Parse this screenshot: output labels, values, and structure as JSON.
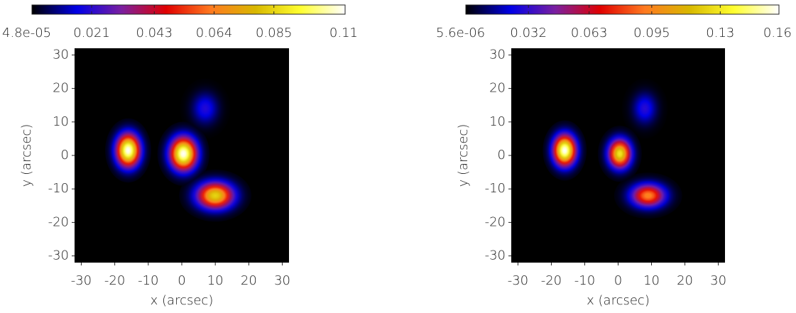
{
  "chart_data": [
    {
      "type": "heatmap",
      "xlabel": "x (arcsec)",
      "ylabel": "y (arcsec)",
      "xlim": [
        -32,
        32
      ],
      "ylim": [
        -32,
        32
      ],
      "xticks": [
        -30,
        -20,
        -10,
        0,
        10,
        20,
        30
      ],
      "yticks": [
        -30,
        -20,
        -10,
        0,
        10,
        20,
        30
      ],
      "clim": [
        4.8e-05,
        0.11
      ],
      "cticks": [
        {
          "value": 4.8e-05,
          "label": "4.8e-05"
        },
        0.021,
        0.043,
        0.064,
        0.085,
        0.11
      ],
      "colormap": [
        "#000000",
        "#0000e6",
        "#7a1fa0",
        "#e00000",
        "#ff7a20",
        "#d8b800",
        "#ffff30",
        "#ffffff"
      ],
      "sources": [
        {
          "x": -16,
          "y": 1.5,
          "value": 0.11,
          "sx": 2.3,
          "sy": 3.2
        },
        {
          "x": 0.5,
          "y": 0.5,
          "value": 0.11,
          "sx": 2.6,
          "sy": 3.2
        },
        {
          "x": 10,
          "y": -12,
          "value": 0.085,
          "sx": 3.6,
          "sy": 2.6
        },
        {
          "x": 7,
          "y": 14,
          "value": 0.02,
          "sx": 2.5,
          "sy": 3
        }
      ]
    },
    {
      "type": "heatmap",
      "xlabel": "x (arcsec)",
      "ylabel": "y (arcsec)",
      "xlim": [
        -32,
        32
      ],
      "ylim": [
        -32,
        32
      ],
      "xticks": [
        -30,
        -20,
        -10,
        0,
        10,
        20,
        30
      ],
      "yticks": [
        -30,
        -20,
        -10,
        0,
        10,
        20,
        30
      ],
      "clim": [
        5.6e-06,
        0.16
      ],
      "cticks": [
        {
          "value": 5.6e-06,
          "label": "5.6e-06"
        },
        0.032,
        0.063,
        0.095,
        0.13,
        0.16
      ],
      "colormap": [
        "#000000",
        "#0000e6",
        "#7a1fa0",
        "#e00000",
        "#ff7a20",
        "#d8b800",
        "#ffff30",
        "#ffffff"
      ],
      "sources": [
        {
          "x": -16,
          "y": 1.5,
          "value": 0.16,
          "sx": 2.2,
          "sy": 3
        },
        {
          "x": 0.5,
          "y": 0.5,
          "value": 0.13,
          "sx": 2.2,
          "sy": 2.8
        },
        {
          "x": 9,
          "y": -12,
          "value": 0.095,
          "sx": 3.4,
          "sy": 2.3
        },
        {
          "x": 8,
          "y": 14,
          "value": 0.03,
          "sx": 2.3,
          "sy": 3
        }
      ]
    }
  ]
}
